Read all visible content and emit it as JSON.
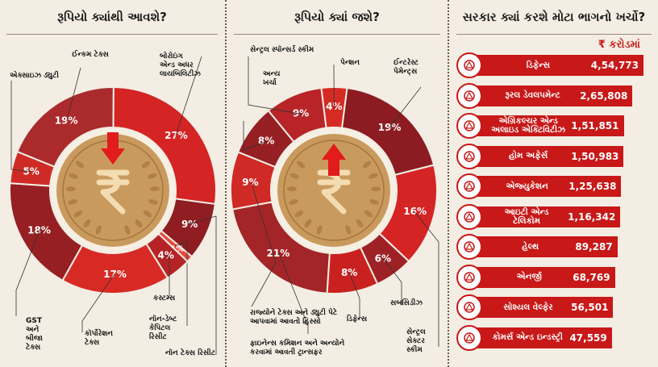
{
  "titles": {
    "left": "રૂપિયો ક્યાંથી આવશે?",
    "middle": "રૂપિયો ક્યાં જશે?",
    "right": "સરકાર ક્યાં કરશે મોટા ભાગનો ખર્ચો?"
  },
  "chart_data": [
    {
      "type": "pie",
      "title": "રૂપિયો ક્યાંથી આવશે?",
      "unit": "%",
      "slices": [
        {
          "label": "ઈન્કમ ટેક્સ",
          "value": 19,
          "color": "#ab2a2c"
        },
        {
          "label": "બોરોઇંગ એન્ડ અધર લાયબિલિટીઝ",
          "value": 27,
          "color": "#d42424"
        },
        {
          "label": "નૉન ટેક્સ રિસીટ",
          "value": 9,
          "color": "#8f1d22"
        },
        {
          "label": "નૉન-ડેબ્ટ કેપિટલ રિસીટ",
          "value": 1,
          "color": "#e84a3c"
        },
        {
          "label": "કસ્ટમ્સ",
          "value": 4,
          "color": "#b52326"
        },
        {
          "label": "કૉર્પોરેશન ટેક્સ",
          "value": 17,
          "color": "#d82a25"
        },
        {
          "label": "GST અને બીજા ટેક્સ",
          "value": 18,
          "color": "#961f24"
        },
        {
          "label": "એક્સાઇઝ ડ્યુટી",
          "value": 5,
          "color": "#cf2b26"
        }
      ]
    },
    {
      "type": "pie",
      "title": "રૂપિયો ક્યાં જશે?",
      "unit": "%",
      "slices": [
        {
          "label": "પેન્શન",
          "value": 4,
          "color": "#d62b24"
        },
        {
          "label": "ઈન્ટરેસ્ટ પેમેન્ટ્સ",
          "value": 19,
          "color": "#8c1c22"
        },
        {
          "label": "સેન્ટ્રલ સેક્ટર સ્કીમ",
          "value": 16,
          "color": "#d42424"
        },
        {
          "label": "સબસિડીઝ",
          "value": 6,
          "color": "#9e2126"
        },
        {
          "label": "ડિફેન્સ",
          "value": 8,
          "color": "#c9211f"
        },
        {
          "label": "ફાઇનેન્સ કમિશન અને અન્યોને કરવામાં આવતી ટ્રાન્સફર",
          "value": 21,
          "color": "#a32528"
        },
        {
          "label": "રાજ્યોને ટેક્સ અને ડ્યુટી પેટે આપવામાં આવતો હિસ્સો",
          "value": 9,
          "color": "#cf2a25"
        },
        {
          "label": "અન્ય ખર્ચા",
          "value": 8,
          "color": "#961f24"
        },
        {
          "label": "સેન્ટ્રલ સ્પૉન્સર્ડ સ્કીમ",
          "value": 9,
          "color": "#b82427"
        }
      ]
    },
    {
      "type": "bar",
      "title": "સરકાર ક્યાં કરશે મોટા ભાગનો ખર્ચો?",
      "unit": "₹ કરોડમાં",
      "categories": [
        "ડિફેન્સ",
        "રૂરલ ડેવલપમેન્ટ",
        "એગ્રિકલ્ચર એન્ડ અલાઇડ એક્ટિવિટીઝ",
        "હોમ અફેર્સ",
        "એજ્યુકેશન",
        "આઇટી એન્ડ ટેલિકોમ",
        "હેલ્થ",
        "એનર્જી",
        "સોશ્યલ વેલ્ફેર",
        "કોમર્સ એન્ડ ઇન્ડસ્ટ્રી"
      ],
      "values": [
        454773,
        265808,
        151851,
        150983,
        125638,
        116342,
        89287,
        68769,
        56501,
        47559
      ],
      "value_labels": [
        "4,54,773",
        "2,65,808",
        "1,51,851",
        "1,50,983",
        "1,25,638",
        "1,16,342",
        "89,287",
        "68,769",
        "56,501",
        "47,559"
      ],
      "icons": [
        "shield-icon",
        "village-icon",
        "tractor-icon",
        "police-icon",
        "education-chart-icon",
        "network-icon",
        "hospital-icon",
        "energy-worker-icon",
        "social-welfare-icon",
        "industry-gear-icon"
      ]
    }
  ],
  "colors": {
    "red": "#c81818",
    "coin": "#c99a5e",
    "coin_dark": "#a8753d",
    "background": "#f3ede3"
  }
}
